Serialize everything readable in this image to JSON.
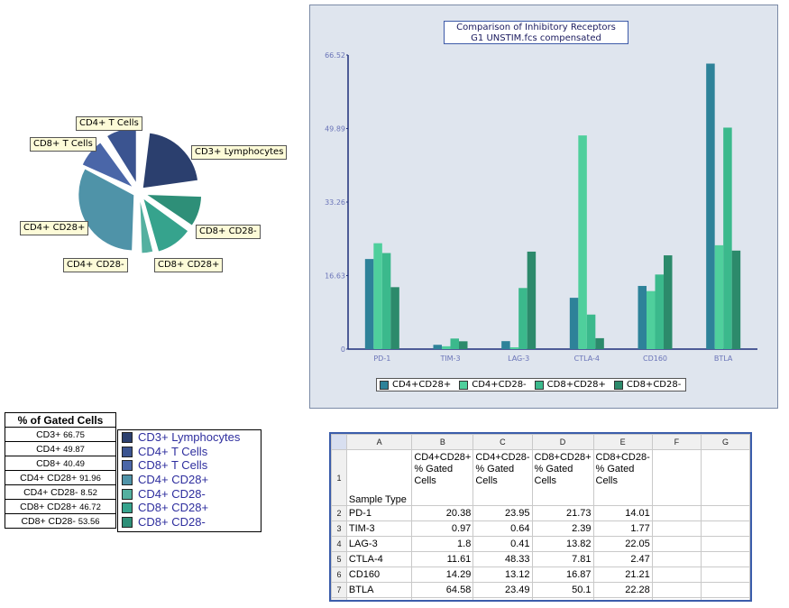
{
  "pie": {
    "colors": [
      "#2b3f6e",
      "#3b5490",
      "#4a66a8",
      "#4f93a8",
      "#54b0a0",
      "#36a38d",
      "#2e8f78"
    ],
    "slices": [
      {
        "label": "CD3+ Lymphocytes",
        "color": "#2b3f6e"
      },
      {
        "label": "CD4+ T Cells",
        "color": "#3b5490"
      },
      {
        "label": "CD8+ T Cells",
        "color": "#4a66a8"
      },
      {
        "label": "CD4+ CD28+",
        "color": "#4f93a8"
      },
      {
        "label": "CD4+ CD28-",
        "color": "#54b0a0"
      },
      {
        "label": "CD8+ CD28+",
        "color": "#36a38d"
      },
      {
        "label": "CD8+ CD28-",
        "color": "#2e8f78"
      }
    ]
  },
  "stats": {
    "header": "% of Gated Cells",
    "rows": [
      {
        "name": "CD3+",
        "value": "66.75"
      },
      {
        "name": "CD4+",
        "value": "49.87"
      },
      {
        "name": "CD8+",
        "value": "40.49"
      },
      {
        "name": "CD4+ CD28+",
        "value": "91.96"
      },
      {
        "name": "CD4+ CD28-",
        "value": "8.52"
      },
      {
        "name": "CD8+ CD28+",
        "value": "46.72"
      },
      {
        "name": "CD8+ CD28-",
        "value": "53.56"
      }
    ]
  },
  "chart_data": {
    "type": "bar",
    "title_line1": "Comparison of Inhibitory Receptors",
    "title_line2": "G1 UNSTIM.fcs compensated",
    "categories": [
      "PD-1",
      "TIM-3",
      "LAG-3",
      "CTLA-4",
      "CD160",
      "BTLA"
    ],
    "series": [
      {
        "name": "CD4+CD28+",
        "color": "#2e8299",
        "values": [
          20.38,
          0.97,
          1.8,
          11.61,
          14.29,
          64.58
        ]
      },
      {
        "name": "CD4+CD28-",
        "color": "#4fcf9c",
        "values": [
          23.95,
          0.64,
          0.41,
          48.33,
          13.12,
          23.49
        ]
      },
      {
        "name": "CD8+CD28+",
        "color": "#3bb98c",
        "values": [
          21.73,
          2.39,
          13.82,
          7.81,
          16.87,
          50.1
        ]
      },
      {
        "name": "CD8+CD28-",
        "color": "#2c8a6b",
        "values": [
          14.01,
          1.77,
          22.05,
          2.47,
          21.21,
          22.28
        ]
      }
    ],
    "yticks": [
      "0",
      "16.63",
      "33.26",
      "49.89",
      "66.52"
    ],
    "ylim": [
      0,
      66.52
    ],
    "legend": "bottom",
    "grid": false
  },
  "sheet": {
    "columns": [
      "A",
      "B",
      "C",
      "D",
      "E",
      "F",
      "G"
    ],
    "header_row": {
      "num": "1",
      "cells": [
        "Sample Type",
        "CD4+CD28+ % Gated Cells",
        "CD4+CD28- % Gated Cells",
        "CD8+CD28+ % Gated Cells",
        "CD8+CD28- % Gated Cells",
        "",
        ""
      ]
    },
    "rows": [
      {
        "num": "2",
        "cells": [
          "PD-1",
          "20.38",
          "23.95",
          "21.73",
          "14.01"
        ]
      },
      {
        "num": "3",
        "cells": [
          "TIM-3",
          "0.97",
          "0.64",
          "2.39",
          "1.77"
        ]
      },
      {
        "num": "4",
        "cells": [
          "LAG-3",
          "1.8",
          "0.41",
          "13.82",
          "22.05"
        ]
      },
      {
        "num": "5",
        "cells": [
          "CTLA-4",
          "11.61",
          "48.33",
          "7.81",
          "2.47"
        ]
      },
      {
        "num": "6",
        "cells": [
          "CD160",
          "14.29",
          "13.12",
          "16.87",
          "21.21"
        ]
      },
      {
        "num": "7",
        "cells": [
          "BTLA",
          "64.58",
          "23.49",
          "50.1",
          "22.28"
        ]
      }
    ]
  }
}
